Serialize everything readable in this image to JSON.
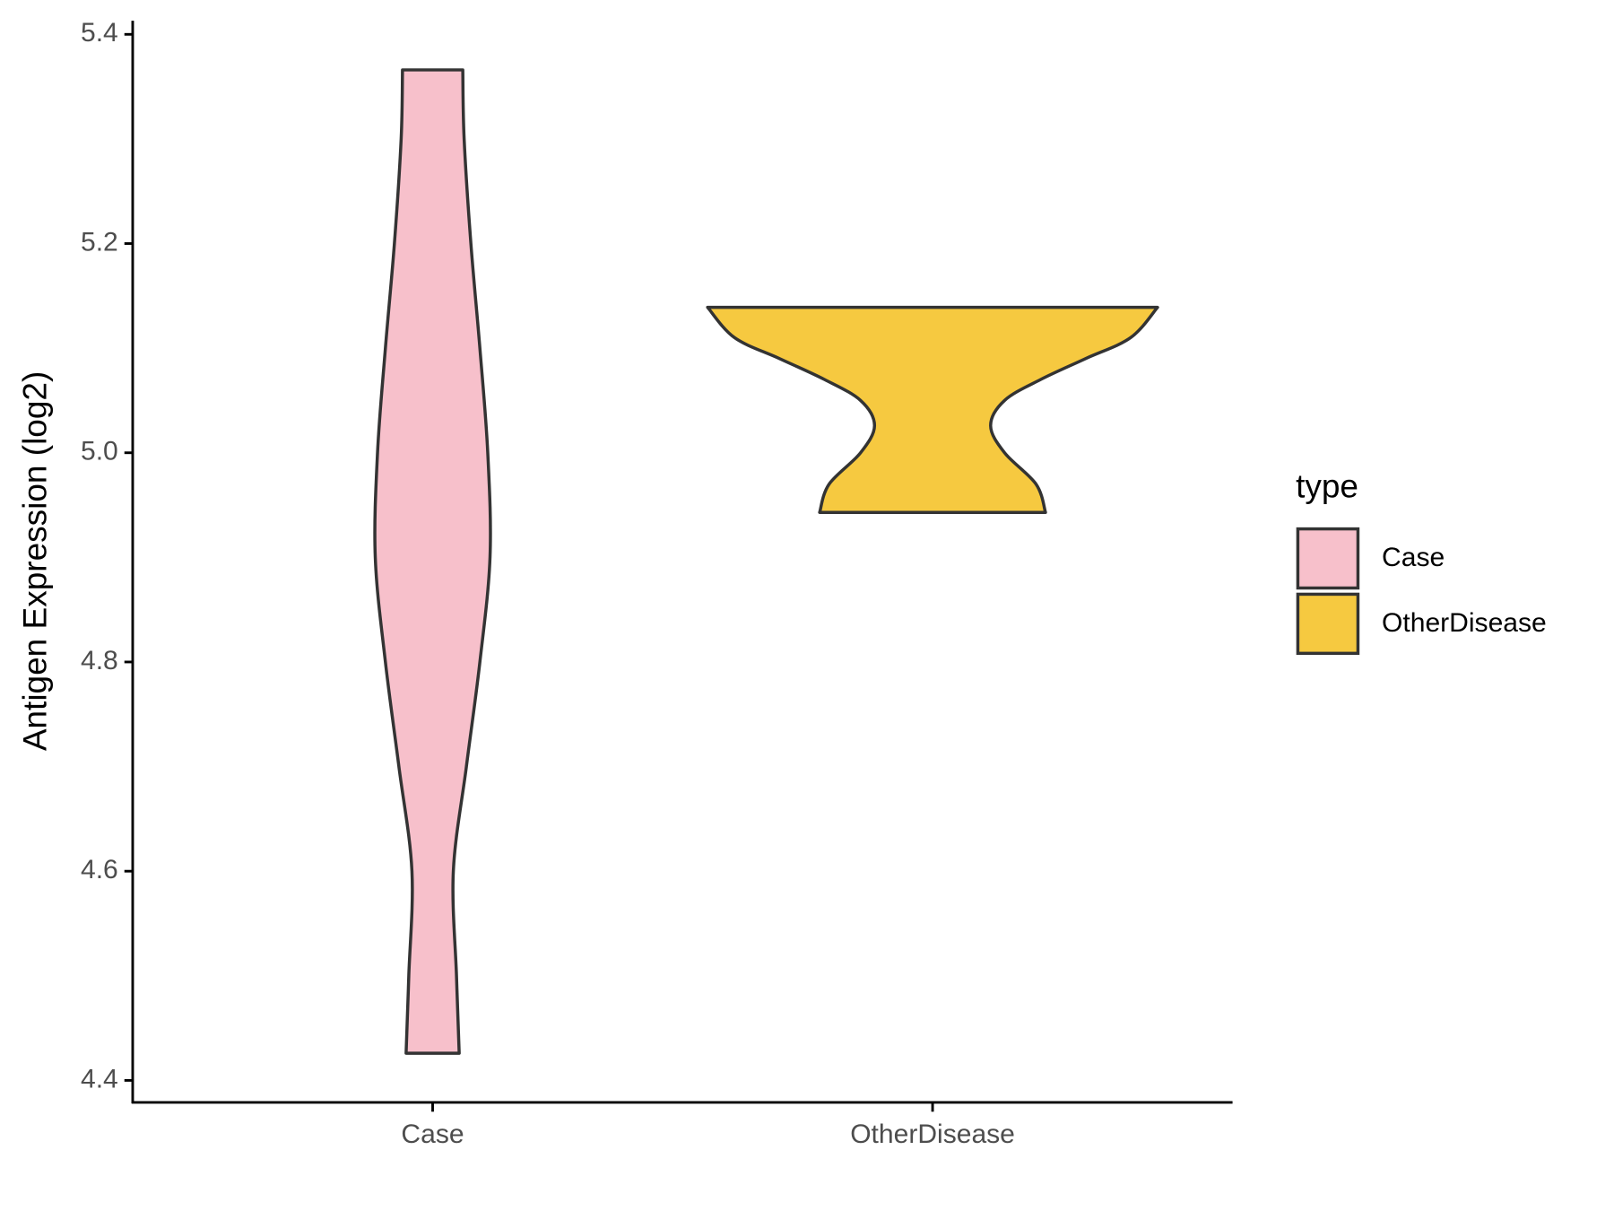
{
  "chart_data": {
    "type": "violin",
    "y_label": "Antigen Expression (log2)",
    "categories": [
      "Case",
      "OtherDisease"
    ],
    "series": [
      {
        "name": "Case",
        "color": "#f7c0cb",
        "y": [
          4.426,
          4.5,
          4.6,
          4.7,
          4.8,
          4.9,
          5.0,
          5.1,
          5.2,
          5.3,
          5.366
        ],
        "width": [
          0.118,
          0.106,
          0.092,
          0.15,
          0.21,
          0.255,
          0.245,
          0.21,
          0.17,
          0.14,
          0.134
        ]
      },
      {
        "name": "OtherDisease",
        "color": "#f6c940",
        "y": [
          4.943,
          4.97,
          5.0,
          5.026,
          5.05,
          5.07,
          5.09,
          5.11,
          5.139
        ],
        "width": [
          0.502,
          0.46,
          0.32,
          0.258,
          0.32,
          0.48,
          0.68,
          0.88,
          1.0
        ]
      }
    ],
    "ylim": [
      4.379,
      5.413
    ],
    "yticks": [
      4.4,
      4.6,
      4.8,
      {
        "value": 5.0,
        "label": "5.0"
      },
      5.2,
      5.4
    ],
    "legend_title": "type",
    "legend_position": "right"
  }
}
